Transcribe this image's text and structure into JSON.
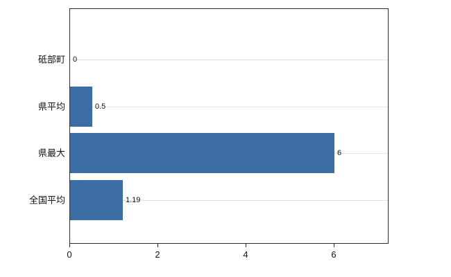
{
  "chart_data": {
    "type": "bar",
    "orientation": "horizontal",
    "title": "",
    "xlabel": "",
    "ylabel": "",
    "categories": [
      "砥部町",
      "県平均",
      "県最大",
      "全国平均"
    ],
    "values": [
      0,
      0.5,
      6,
      1.19
    ],
    "value_labels": [
      "0",
      "0.5",
      "6",
      "1.19"
    ],
    "x_ticks": [
      0,
      2,
      4,
      6
    ],
    "x_tick_labels": [
      "0",
      "2",
      "4",
      "6"
    ],
    "xlim": [
      0,
      7.24
    ],
    "grid": "horizontal light gridlines at category centers",
    "legend": "none",
    "bar_color": "#3c6da5"
  }
}
